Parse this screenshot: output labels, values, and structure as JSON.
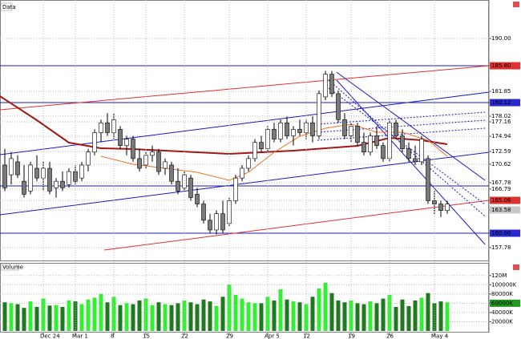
{
  "chart_data": [
    {
      "type": "candlestick",
      "title": "Data",
      "categories": [
        null,
        null,
        null,
        null,
        null,
        null,
        "Dec 24",
        null,
        null,
        null,
        null,
        "Mar 1",
        null,
        null,
        null,
        null,
        null,
        "8",
        null,
        null,
        null,
        null,
        "15",
        null,
        null,
        null,
        null,
        null,
        "22",
        null,
        null,
        null,
        null,
        null,
        null,
        "29",
        null,
        null,
        null,
        null,
        null,
        "Apr 5",
        null,
        null,
        null,
        null,
        null,
        "12",
        null,
        null,
        null,
        null,
        null,
        null,
        "19",
        null,
        null,
        null,
        null,
        null,
        "26",
        null,
        null,
        null,
        null,
        null,
        null,
        "May 4",
        null,
        null
      ],
      "open": [
        170.5,
        169.0,
        171.0,
        168.0,
        166.5,
        170.0,
        168.5,
        170.0,
        167.0,
        168.0,
        167.5,
        169.5,
        168.5,
        170.5,
        172.5,
        175.5,
        177.0,
        175.5,
        176.0,
        173.5,
        174.5,
        171.5,
        170.5,
        172.0,
        172.5,
        170.0,
        170.5,
        168.0,
        167.0,
        168.5,
        166.0,
        164.5,
        162.0,
        160.5,
        163.0,
        161.5,
        165.0,
        168.5,
        170.0,
        171.5,
        174.0,
        173.0,
        176.0,
        174.5,
        177.0,
        175.0,
        176.0,
        175.5,
        177.0,
        175.0,
        181.0,
        184.5,
        181.5,
        177.5,
        175.0,
        176.5,
        174.0,
        172.5,
        175.0,
        173.5,
        171.5,
        177.0,
        175.0,
        173.0,
        171.5,
        171.0,
        171.5,
        165.0,
        164.5,
        163.5
      ],
      "high": [
        173.0,
        172.5,
        172.0,
        170.5,
        171.0,
        172.0,
        171.0,
        171.0,
        168.5,
        169.5,
        170.0,
        170.5,
        171.0,
        173.0,
        176.0,
        177.5,
        178.5,
        178.5,
        176.5,
        175.0,
        175.0,
        173.0,
        172.5,
        173.5,
        173.0,
        171.5,
        171.0,
        170.0,
        169.5,
        169.0,
        167.0,
        165.0,
        163.0,
        163.5,
        165.0,
        165.5,
        169.0,
        170.5,
        172.0,
        174.5,
        175.0,
        176.5,
        177.0,
        177.5,
        178.0,
        176.5,
        177.5,
        177.5,
        178.0,
        182.0,
        185.0,
        185.0,
        182.0,
        178.5,
        177.0,
        177.0,
        175.5,
        175.5,
        176.5,
        174.0,
        177.5,
        177.5,
        176.0,
        174.0,
        173.5,
        175.0,
        172.0,
        166.5,
        165.0,
        165.0
      ],
      "low": [
        166.5,
        167.5,
        168.5,
        165.5,
        166.0,
        168.0,
        166.5,
        166.0,
        165.5,
        166.5,
        167.0,
        167.5,
        168.0,
        169.5,
        172.0,
        174.0,
        175.0,
        174.5,
        173.0,
        172.0,
        171.0,
        169.5,
        170.0,
        171.0,
        169.0,
        169.0,
        167.5,
        166.0,
        166.5,
        165.0,
        164.0,
        161.5,
        160.0,
        159.8,
        160.0,
        161.0,
        164.5,
        168.0,
        169.5,
        171.0,
        172.5,
        172.5,
        174.0,
        174.0,
        174.5,
        173.5,
        175.0,
        174.5,
        174.0,
        174.5,
        180.5,
        181.0,
        177.0,
        174.5,
        174.0,
        173.5,
        172.0,
        172.0,
        173.0,
        171.0,
        171.0,
        174.5,
        172.5,
        171.0,
        170.5,
        170.5,
        164.5,
        163.0,
        162.5,
        163.0
      ],
      "close": [
        167.0,
        171.5,
        169.0,
        166.0,
        170.5,
        168.5,
        170.0,
        166.5,
        168.0,
        167.0,
        169.5,
        168.0,
        170.5,
        172.5,
        175.5,
        177.0,
        175.5,
        177.5,
        173.5,
        174.5,
        171.5,
        170.0,
        172.0,
        172.5,
        169.5,
        171.0,
        168.0,
        166.5,
        169.0,
        165.5,
        164.5,
        162.0,
        160.5,
        163.0,
        160.5,
        165.0,
        168.5,
        170.0,
        171.5,
        174.0,
        173.0,
        176.0,
        174.5,
        177.0,
        175.0,
        176.0,
        175.5,
        177.0,
        175.0,
        181.5,
        184.5,
        181.5,
        177.5,
        175.0,
        176.5,
        174.0,
        172.5,
        175.0,
        173.5,
        171.5,
        177.0,
        175.0,
        173.0,
        171.5,
        171.0,
        174.5,
        165.0,
        164.5,
        163.5,
        164.5
      ],
      "up_color": "#ffffff",
      "down_color": "#7a7a7a",
      "ylim": [
        155.8,
        195.93
      ],
      "yticks": [
        {
          "value": 190,
          "label": "190.00"
        },
        {
          "value": 185.8,
          "label": "185.80",
          "color": "#e03030"
        },
        {
          "value": 181.85,
          "label": "181.85"
        },
        {
          "value": 180.12,
          "label": "180.12",
          "color": "#2a2ad0"
        },
        {
          "value": 178.02,
          "label": "178.02"
        },
        {
          "value": 177.16,
          "label": "177.16"
        },
        {
          "value": 174.94,
          "label": "174.94"
        },
        {
          "value": 172.59,
          "label": "172.59"
        },
        {
          "value": 170.62,
          "label": "170.62"
        },
        {
          "value": 167.78,
          "label": "167.78"
        },
        {
          "value": 166.79,
          "label": "166.79"
        },
        {
          "value": 165.06,
          "label": "165.06",
          "color": "#e03030"
        },
        {
          "value": 163.58,
          "label": "163.58",
          "color": "#c8c8c8"
        },
        {
          "value": 160,
          "label": "160.00",
          "color": "#2a2ad0"
        },
        {
          "value": 157.78,
          "label": "157.78"
        }
      ],
      "grid": true,
      "hlines": [
        185.8,
        180.12,
        167.28,
        160.0
      ],
      "hline_color": "#1a1ac0",
      "lines": [
        {
          "color": "#e03030",
          "style": "solid",
          "x": [
            -0.75,
            75.5
          ],
          "values": [
            179.01,
            185.8
          ]
        },
        {
          "color": "#e03030",
          "style": "solid",
          "x": [
            15.5,
            75.5
          ],
          "values": [
            157.41,
            165.06
          ]
        },
        {
          "color": "#1a1ac0",
          "style": "solid",
          "x": [
            -0.75,
            75.5
          ],
          "values": [
            172.1,
            181.73
          ]
        },
        {
          "color": "#1a1ac0",
          "style": "solid",
          "x": [
            -0.75,
            75.5
          ],
          "values": [
            162.84,
            172.47
          ]
        },
        {
          "color": "#1a1ac0",
          "style": "solid",
          "x": [
            51.75,
            74.9
          ],
          "values": [
            184.81,
            168.15
          ]
        },
        {
          "color": "#1a1ac0",
          "style": "solid",
          "x": [
            51.75,
            74.9
          ],
          "values": [
            183.58,
            158.27
          ]
        },
        {
          "color": "#1a1ac0",
          "style": "dotted",
          "x": [
            48.75,
            74.9
          ],
          "values": [
            176.79,
            178.64
          ]
        },
        {
          "color": "#1a1ac0",
          "style": "dotted",
          "x": [
            48.75,
            74.9
          ],
          "values": [
            175.56,
            177.41
          ]
        },
        {
          "color": "#1a1ac0",
          "style": "dotted",
          "x": [
            48.75,
            74.9
          ],
          "values": [
            174.32,
            176.17
          ]
        },
        {
          "color": "#1a1ac0",
          "style": "dotted",
          "x": [
            50.5,
            74.9
          ],
          "values": [
            183.58,
            162.59
          ]
        },
        {
          "color": "#1a1ac0",
          "style": "dotted",
          "x": [
            50.5,
            74.9
          ],
          "values": [
            182.35,
            164.44
          ]
        },
        {
          "color": "#a01818",
          "style": "thick",
          "x": [
            -0.75,
            5,
            10,
            15,
            20,
            25,
            30,
            35,
            40,
            45,
            50,
            55,
            60,
            65,
            69
          ],
          "values": [
            181.11,
            177.41,
            173.95,
            173.09,
            172.96,
            172.72,
            172.47,
            172.22,
            172.47,
            172.72,
            173.09,
            173.46,
            174.69,
            174.32,
            173.7
          ]
        },
        {
          "color": "#f07020",
          "style": "solid",
          "x": [
            15,
            20,
            25,
            30,
            35,
            38,
            42,
            46,
            50,
            54,
            58,
            62,
            66,
            69
          ],
          "values": [
            171.85,
            170.62,
            170.0,
            169.38,
            168.15,
            169.38,
            172.47,
            174.94,
            176.17,
            176.79,
            175.56,
            175.56,
            174.32,
            171.85
          ]
        }
      ]
    },
    {
      "type": "bar",
      "title": "Volume",
      "values": [
        62000,
        60000,
        58000,
        50000,
        64000,
        52000,
        70000,
        55000,
        56000,
        52000,
        66000,
        64000,
        58000,
        68000,
        72000,
        80000,
        62000,
        74000,
        56000,
        60000,
        58000,
        66000,
        70000,
        56000,
        62000,
        58000,
        56000,
        60000,
        66000,
        62000,
        58000,
        68000,
        64000,
        54000,
        74000,
        100000,
        78000,
        70000,
        62000,
        60000,
        60000,
        74000,
        66000,
        90000,
        68000,
        64000,
        62000,
        58000,
        74000,
        92000,
        104000,
        82000,
        66000,
        62000,
        66000,
        60000,
        58000,
        64000,
        60000,
        70000,
        78000,
        52000,
        68000,
        54000,
        66000,
        72000,
        82000,
        60000,
        64000,
        62000
      ],
      "up_color": "#33ee33",
      "down_color": "#1f7a1f",
      "ylim": [
        0,
        130000
      ],
      "yticks": [
        {
          "value": 20000,
          "label": "20000K"
        },
        {
          "value": 40000,
          "label": "40000K"
        },
        {
          "value": 60000,
          "label": "60000K",
          "color": "#1f9a1f"
        },
        {
          "value": 80000,
          "label": "80000K"
        },
        {
          "value": 100000,
          "label": "100000K"
        },
        {
          "value": 120000,
          "label": "120M"
        }
      ]
    }
  ]
}
